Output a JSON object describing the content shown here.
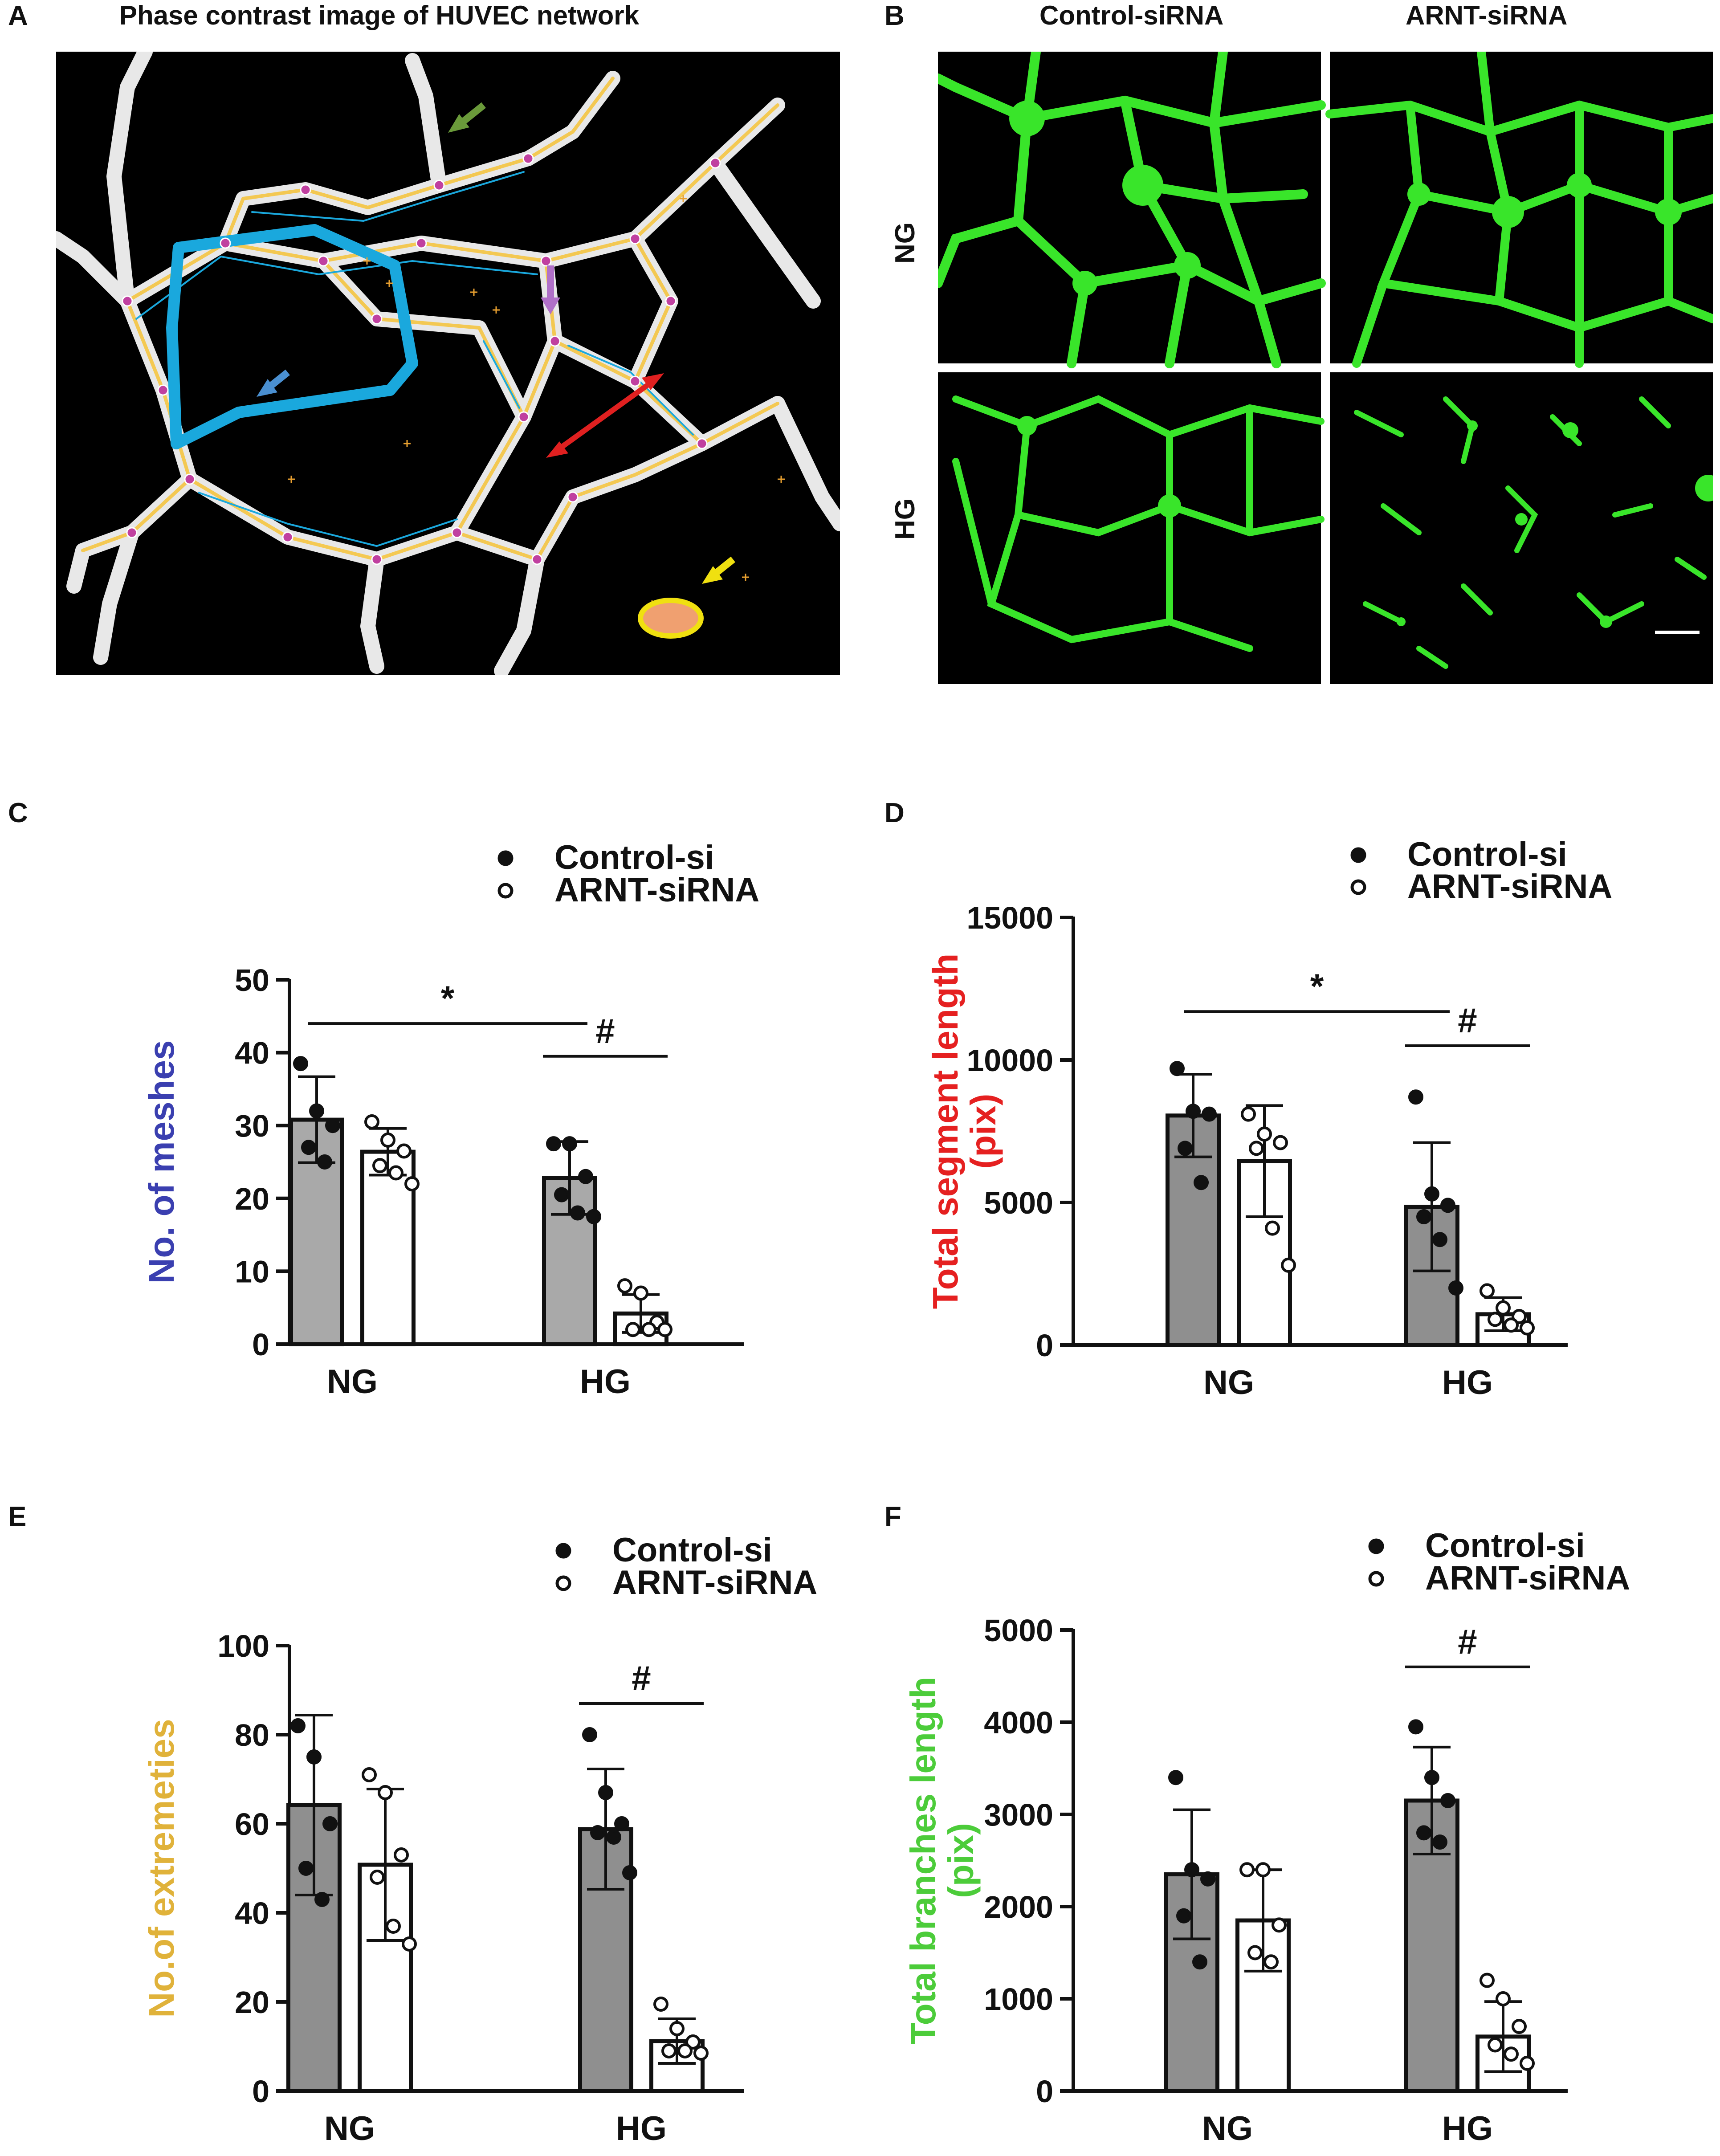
{
  "panel_a": {
    "letter": "A",
    "title": "Phase contrast image of HUVEC network"
  },
  "panel_b": {
    "letter": "B",
    "col_labels": [
      "Control-siRNA",
      "ARNT-siRNA"
    ],
    "row_labels": [
      "NG",
      "HG"
    ]
  },
  "colors": {
    "bar_fill": "#8f8f8f",
    "bar_fill_c": "#a9a9a9",
    "meshes_label": "#3a3fb0",
    "segment_label": "#e52020",
    "extremeties_label": "#e0b23a",
    "branches_label": "#4ccc3a",
    "microscopy_green": "#39e52a",
    "arrow_green": "#6a9a3a",
    "arrow_purple": "#b070c8",
    "arrow_blue": "#4a8fd0",
    "arrow_red": "#e02020",
    "arrow_yellow": "#f0e010",
    "mesh_outline": "#1aa8dd",
    "oval_fill": "#f0a070"
  },
  "chart_data": [
    {
      "panel": "C",
      "type": "bar",
      "categories": [
        "NG",
        "HG"
      ],
      "ylabel": "No. of meshes",
      "ylim": [
        0,
        50
      ],
      "yticks": [
        0,
        10,
        20,
        30,
        40,
        50
      ],
      "legend": [
        "Control-si",
        "ARNT-siRNA"
      ],
      "series": [
        {
          "name": "Control-si",
          "values": [
            30.8,
            22.8
          ],
          "sd": [
            5.9,
            5.0
          ],
          "points": [
            [
              38.5,
              32,
              30,
              27,
              25
            ],
            [
              27.5,
              27.5,
              23,
              20.5,
              18,
              17.5
            ]
          ]
        },
        {
          "name": "ARNT-siRNA",
          "values": [
            26.4,
            4.2
          ],
          "sd": [
            3.2,
            2.6
          ],
          "points": [
            [
              30.5,
              28,
              26.5,
              24.5,
              23.5,
              22
            ],
            [
              8,
              7,
              3,
              2,
              2,
              2
            ]
          ]
        }
      ],
      "annotations": [
        {
          "text": "*",
          "span": [
            "NG-Control-si",
            "HG-Control-si"
          ],
          "y": 44
        },
        {
          "text": "#",
          "span": [
            "HG-Control-si",
            "HG-ARNT-siRNA"
          ],
          "y": 39.5
        }
      ]
    },
    {
      "panel": "D",
      "type": "bar",
      "categories": [
        "NG",
        "HG"
      ],
      "ylabel": "Total segment length (pix)",
      "ylim": [
        0,
        15000
      ],
      "yticks": [
        0,
        5000,
        10000,
        15000
      ],
      "legend": [
        "Control-si",
        "ARNT-siRNA"
      ],
      "series": [
        {
          "name": "Control-si",
          "values": [
            8050,
            4850
          ],
          "sd": [
            1450,
            2250
          ],
          "points": [
            [
              9700,
              8200,
              8100,
              6900,
              5700
            ],
            [
              8700,
              5300,
              4900,
              4500,
              3700,
              2000
            ]
          ]
        },
        {
          "name": "ARNT-siRNA",
          "values": [
            6450,
            1080
          ],
          "sd": [
            1950,
            580
          ],
          "points": [
            [
              8100,
              7400,
              7100,
              6900,
              4100,
              2800
            ],
            [
              1900,
              1300,
              1000,
              900,
              700,
              600
            ]
          ]
        }
      ],
      "annotations": [
        {
          "text": "*",
          "span": [
            "NG-Control-si",
            "HG-Control-si"
          ],
          "y": 11700
        },
        {
          "text": "#",
          "span": [
            "HG-Control-si",
            "HG-ARNT-siRNA"
          ],
          "y": 10500
        }
      ]
    },
    {
      "panel": "E",
      "type": "bar",
      "categories": [
        "NG",
        "HG"
      ],
      "ylabel": "No.of extremeties",
      "ylim": [
        0,
        100
      ],
      "yticks": [
        0,
        20,
        40,
        60,
        80,
        100
      ],
      "legend": [
        "Control-si",
        "ARNT-siRNA"
      ],
      "series": [
        {
          "name": "Control-si",
          "values": [
            64.2,
            58.8
          ],
          "sd": [
            20.2,
            13.5
          ],
          "points": [
            [
              82,
              75,
              60,
              50,
              43
            ],
            [
              80,
              67,
              60,
              58,
              57,
              49
            ]
          ]
        },
        {
          "name": "ARNT-siRNA",
          "values": [
            50.8,
            11.2
          ],
          "sd": [
            17.0,
            5.0
          ],
          "points": [
            [
              71,
              67,
              53,
              48,
              37,
              33
            ],
            [
              19.5,
              14,
              11,
              9,
              9,
              8.5
            ]
          ]
        }
      ],
      "annotations": [
        {
          "text": "#",
          "span": [
            "HG-Control-si",
            "HG-ARNT-siRNA"
          ],
          "y": 87
        }
      ]
    },
    {
      "panel": "F",
      "type": "bar",
      "categories": [
        "NG",
        "HG"
      ],
      "ylabel": "Total branches length (pix)",
      "ylim": [
        0,
        5000
      ],
      "yticks": [
        0,
        1000,
        2000,
        3000,
        4000,
        5000
      ],
      "legend": [
        "Control-si",
        "ARNT-siRNA"
      ],
      "series": [
        {
          "name": "Control-si",
          "values": [
            2350,
            3150
          ],
          "sd": [
            700,
            580
          ],
          "points": [
            [
              3400,
              2400,
              2300,
              1900,
              1400
            ],
            [
              3950,
              3400,
              3150,
              2800,
              2700
            ]
          ]
        },
        {
          "name": "ARNT-siRNA",
          "values": [
            1850,
            590
          ],
          "sd": [
            550,
            380
          ],
          "points": [
            [
              2400,
              2400,
              1800,
              1500,
              1400
            ],
            [
              1200,
              1000,
              700,
              500,
              400,
              300
            ]
          ]
        }
      ],
      "annotations": [
        {
          "text": "#",
          "span": [
            "HG-Control-si",
            "HG-ARNT-siRNA"
          ],
          "y": 4600
        }
      ]
    }
  ],
  "chart_letters": [
    "C",
    "D",
    "E",
    "F"
  ],
  "axis_tick_labels": {
    "ng": "NG",
    "hg": "HG"
  }
}
